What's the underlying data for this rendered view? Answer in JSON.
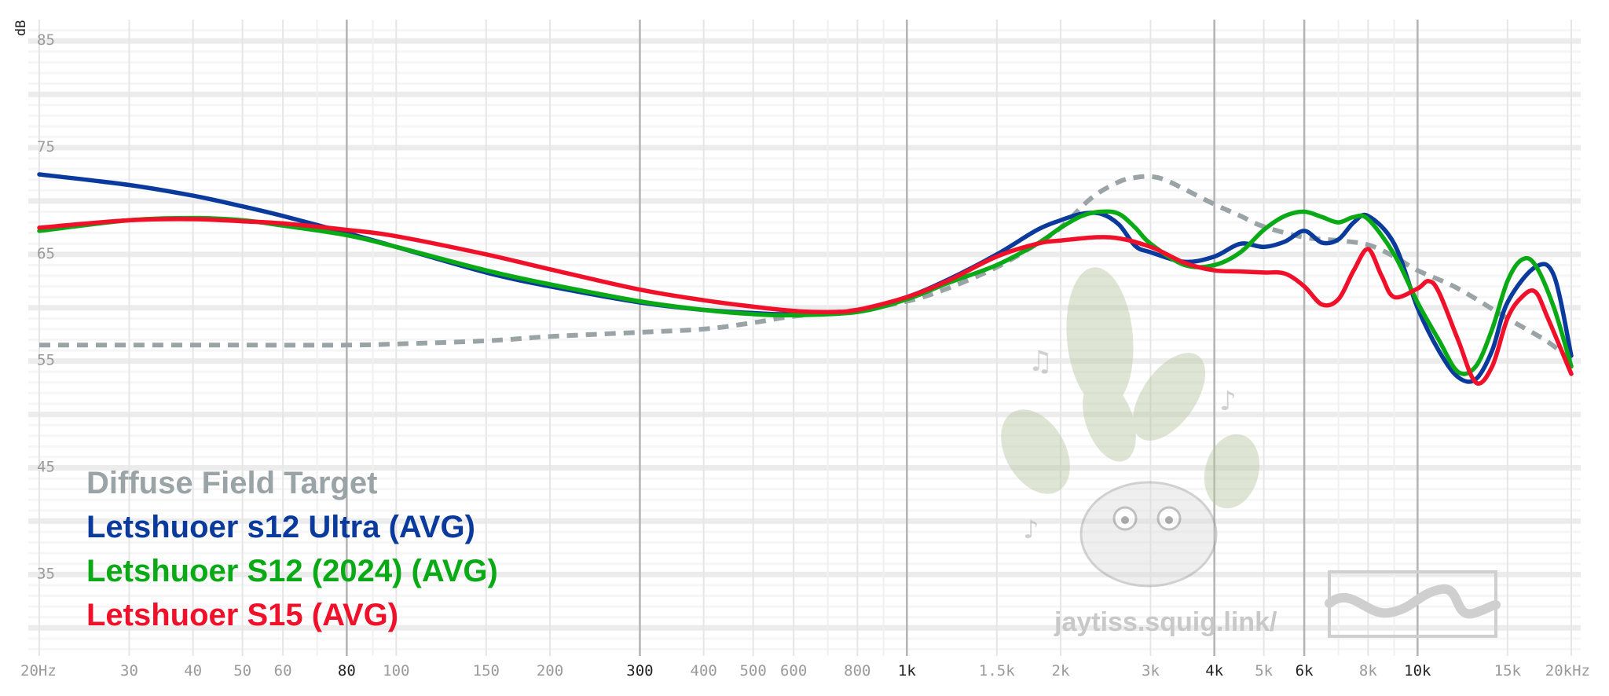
{
  "chart_data": {
    "type": "line",
    "title": "",
    "xlabel": "",
    "ylabel": "dB",
    "xscale": "log",
    "xlim": [
      20,
      20000
    ],
    "ylim": [
      27,
      87
    ],
    "y_ticks": [
      35,
      45,
      55,
      65,
      75,
      85
    ],
    "x_ticks": [
      {
        "value": 20,
        "label": "20Hz",
        "major": false
      },
      {
        "value": 30,
        "label": "30",
        "major": false
      },
      {
        "value": 40,
        "label": "40",
        "major": false
      },
      {
        "value": 50,
        "label": "50",
        "major": false
      },
      {
        "value": 60,
        "label": "60",
        "major": false
      },
      {
        "value": 80,
        "label": "80",
        "major": true
      },
      {
        "value": 100,
        "label": "100",
        "major": false
      },
      {
        "value": 150,
        "label": "150",
        "major": false
      },
      {
        "value": 200,
        "label": "200",
        "major": false
      },
      {
        "value": 300,
        "label": "300",
        "major": true
      },
      {
        "value": 400,
        "label": "400",
        "major": false
      },
      {
        "value": 500,
        "label": "500",
        "major": false
      },
      {
        "value": 600,
        "label": "600",
        "major": false
      },
      {
        "value": 800,
        "label": "800",
        "major": false
      },
      {
        "value": 1000,
        "label": "1k",
        "major": true
      },
      {
        "value": 1500,
        "label": "1.5k",
        "major": false
      },
      {
        "value": 2000,
        "label": "2k",
        "major": false
      },
      {
        "value": 3000,
        "label": "3k",
        "major": false
      },
      {
        "value": 4000,
        "label": "4k",
        "major": true
      },
      {
        "value": 5000,
        "label": "5k",
        "major": false
      },
      {
        "value": 6000,
        "label": "6k",
        "major": true
      },
      {
        "value": 8000,
        "label": "8k",
        "major": false
      },
      {
        "value": 10000,
        "label": "10k",
        "major": true
      },
      {
        "value": 15000,
        "label": "15k",
        "major": false
      },
      {
        "value": 20000,
        "label": "20kHz",
        "major": false
      }
    ],
    "series": [
      {
        "name": "Diffuse Field Target",
        "color": "#9aa3a6",
        "dashed": true,
        "x": [
          20,
          30,
          50,
          80,
          100,
          150,
          200,
          300,
          400,
          500,
          600,
          800,
          1000,
          1200,
          1500,
          1800,
          2000,
          2300,
          2600,
          2800,
          3000,
          3200,
          3500,
          4000,
          4500,
          5000,
          6000,
          7000,
          8000,
          9000,
          10000,
          12000,
          15000,
          18000,
          20000
        ],
        "y": [
          56.5,
          56.5,
          56.5,
          56.5,
          56.6,
          56.9,
          57.3,
          57.7,
          58.0,
          58.6,
          59.2,
          59.8,
          60.6,
          61.8,
          63.8,
          66.0,
          67.5,
          70.3,
          71.8,
          72.2,
          72.3,
          72.0,
          71.1,
          69.7,
          68.6,
          67.6,
          66.6,
          66.3,
          65.9,
          64.8,
          63.5,
          61.8,
          59.0,
          56.8,
          55.0
        ]
      },
      {
        "name": "Letshuoer s12 Ultra (AVG)",
        "color": "#0a3a9b",
        "dashed": false,
        "x": [
          20,
          30,
          40,
          50,
          60,
          80,
          100,
          150,
          200,
          300,
          400,
          500,
          600,
          800,
          1000,
          1200,
          1500,
          1800,
          2000,
          2200,
          2400,
          2600,
          2800,
          3000,
          3500,
          4000,
          4500,
          5000,
          5500,
          6000,
          6500,
          7000,
          7500,
          8000,
          9000,
          10000,
          11000,
          12000,
          13000,
          14000,
          15000,
          17000,
          18500,
          20000
        ],
        "y": [
          72.5,
          71.5,
          70.5,
          69.5,
          68.6,
          67.0,
          65.7,
          63.3,
          62.0,
          60.5,
          59.8,
          59.5,
          59.4,
          59.7,
          61.0,
          62.6,
          65.0,
          67.3,
          68.2,
          68.8,
          68.8,
          67.8,
          65.8,
          65.2,
          64.3,
          64.8,
          66.0,
          65.7,
          66.2,
          67.2,
          66.1,
          66.4,
          68.0,
          68.6,
          66.0,
          60.0,
          56.0,
          53.5,
          53.3,
          56.0,
          60.5,
          63.8,
          63.0,
          55.5
        ]
      },
      {
        "name": "Letshuoer S12 (2024) (AVG)",
        "color": "#0aaa16",
        "dashed": false,
        "x": [
          20,
          30,
          40,
          50,
          60,
          80,
          100,
          150,
          200,
          300,
          400,
          500,
          600,
          800,
          1000,
          1200,
          1500,
          1800,
          2000,
          2200,
          2400,
          2600,
          2800,
          3000,
          3500,
          4000,
          4500,
          5000,
          5500,
          6000,
          6500,
          7000,
          7500,
          8000,
          9000,
          10000,
          11000,
          12000,
          13000,
          14000,
          15000,
          16000,
          17000,
          18500,
          20000
        ],
        "y": [
          67.2,
          68.2,
          68.4,
          68.2,
          67.7,
          66.8,
          65.7,
          63.5,
          62.2,
          60.6,
          59.8,
          59.4,
          59.3,
          59.6,
          60.8,
          62.3,
          64.0,
          66.0,
          67.5,
          68.6,
          69.0,
          68.8,
          67.5,
          66.0,
          64.0,
          64.0,
          65.2,
          67.3,
          68.6,
          69.0,
          68.5,
          68.0,
          68.5,
          68.3,
          65.0,
          60.5,
          57.0,
          54.0,
          54.5,
          58.0,
          62.5,
          64.5,
          64.0,
          60.0,
          54.5
        ]
      },
      {
        "name": "Letshuoer S15 (AVG)",
        "color": "#f0102a",
        "dashed": false,
        "x": [
          20,
          30,
          40,
          50,
          60,
          80,
          100,
          150,
          200,
          300,
          400,
          500,
          600,
          700,
          800,
          1000,
          1200,
          1500,
          1800,
          2000,
          2500,
          3000,
          3500,
          4000,
          4500,
          5000,
          5500,
          6000,
          6500,
          7000,
          7500,
          8000,
          8500,
          9000,
          10000,
          10500,
          11000,
          12000,
          13000,
          14000,
          15000,
          16000,
          17000,
          18000,
          20000
        ],
        "y": [
          67.5,
          68.2,
          68.3,
          68.1,
          67.9,
          67.3,
          66.7,
          65.0,
          63.6,
          61.7,
          60.7,
          60.1,
          59.7,
          59.6,
          59.8,
          61.0,
          62.5,
          64.8,
          66.0,
          66.3,
          66.6,
          65.7,
          64.2,
          63.5,
          63.4,
          63.3,
          63.2,
          62.0,
          60.3,
          60.8,
          63.5,
          65.5,
          63.0,
          61.0,
          61.8,
          62.5,
          61.5,
          57.0,
          53.0,
          54.5,
          59.0,
          61.0,
          61.5,
          59.0,
          53.8
        ]
      }
    ]
  },
  "watermark": {
    "site": "jaytiss.squig.link/"
  }
}
